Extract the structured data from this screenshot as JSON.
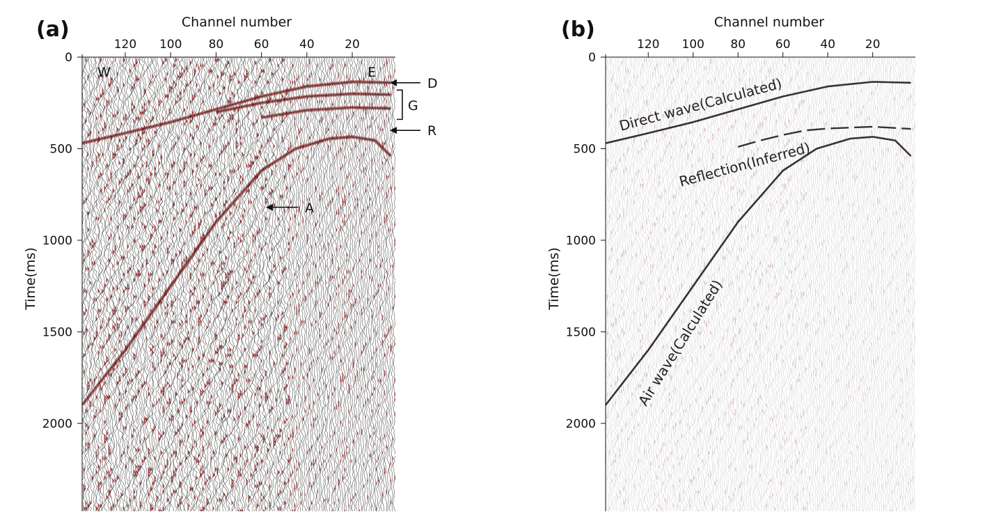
{
  "chart_data": [
    {
      "type": "line",
      "panel_label": "(a)",
      "xlabel": "Channel number",
      "ylabel": "Time(ms)",
      "x_ticks": [
        120,
        100,
        80,
        60,
        40,
        20
      ],
      "y_ticks": [
        0,
        500,
        1000,
        1500,
        2000
      ],
      "xlim": [
        139,
        1
      ],
      "ylim": [
        0,
        2480
      ],
      "x_axis_position": "top",
      "trace_colors": {
        "positive": "#8b1a1a",
        "wiggle": "#2a2a2a"
      },
      "corner_labels": {
        "left": "W",
        "right": "E"
      },
      "annotations": [
        {
          "label": "D",
          "channel": 3,
          "time_ms": 140
        },
        {
          "label": "G",
          "channel": 3,
          "time_start_ms": 180,
          "time_end_ms": 340
        },
        {
          "label": "R",
          "channel": 3,
          "time_ms": 400
        },
        {
          "label": "A",
          "channel": 57,
          "time_ms": 820
        }
      ]
    },
    {
      "type": "line",
      "panel_label": "(b)",
      "xlabel": "Channel number",
      "ylabel": "Time(ms)",
      "x_ticks": [
        120,
        100,
        80,
        60,
        40,
        20
      ],
      "y_ticks": [
        0,
        500,
        1000,
        1500,
        2000
      ],
      "xlim": [
        139,
        1
      ],
      "ylim": [
        0,
        2480
      ],
      "x_axis_position": "top",
      "trace_colors": {
        "positive": "#c98a8a",
        "wiggle": "#9a9a9a"
      },
      "series": [
        {
          "name": "Direct wave(Calculated)",
          "color": "#333333",
          "points": [
            [
              139,
              470
            ],
            [
              120,
              415
            ],
            [
              100,
              355
            ],
            [
              80,
              285
            ],
            [
              60,
              215
            ],
            [
              40,
              160
            ],
            [
              20,
              135
            ],
            [
              3,
              140
            ]
          ]
        },
        {
          "name": "Reflection(Inferred)",
          "color": "#333333",
          "dashed": true,
          "points": [
            [
              80,
              490
            ],
            [
              70,
              455
            ],
            [
              60,
              425
            ],
            [
              50,
              400
            ],
            [
              40,
              390
            ],
            [
              30,
              385
            ],
            [
              20,
              380
            ],
            [
              3,
              392
            ]
          ]
        },
        {
          "name": "Air wave(Calculated)",
          "color": "#333333",
          "points": [
            [
              139,
              1900
            ],
            [
              120,
              1600
            ],
            [
              100,
              1250
            ],
            [
              80,
              900
            ],
            [
              60,
              620
            ],
            [
              45,
              500
            ],
            [
              30,
              445
            ],
            [
              20,
              435
            ],
            [
              10,
              455
            ],
            [
              3,
              540
            ]
          ]
        }
      ]
    }
  ]
}
